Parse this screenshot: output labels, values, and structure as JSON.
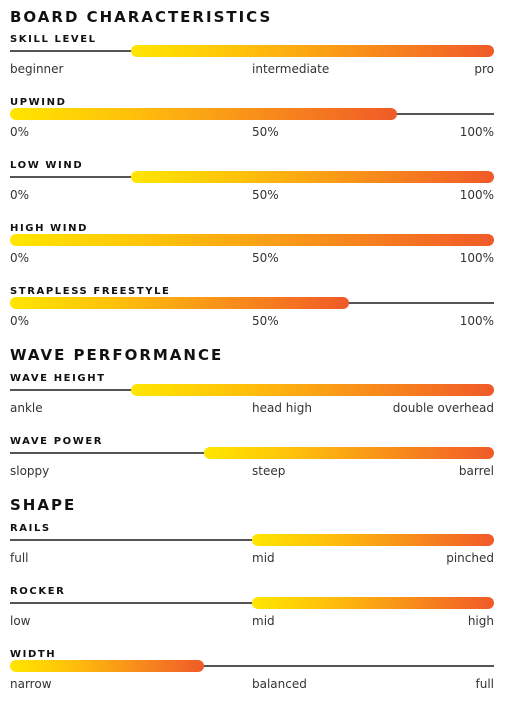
{
  "sections": [
    {
      "title": "BOARD CHARACTERISTICS",
      "items": [
        {
          "label": "SKILL LEVEL",
          "from": 0.25,
          "to": 1.0,
          "scale": [
            "beginner",
            "intermediate",
            "pro"
          ]
        },
        {
          "label": "UPWIND",
          "from": 0.0,
          "to": 0.8,
          "scale": [
            "0%",
            "50%",
            "100%"
          ]
        },
        {
          "label": "LOW WIND",
          "from": 0.25,
          "to": 1.0,
          "scale": [
            "0%",
            "50%",
            "100%"
          ]
        },
        {
          "label": "HIGH WIND",
          "from": 0.0,
          "to": 1.0,
          "scale": [
            "0%",
            "50%",
            "100%"
          ]
        },
        {
          "label": "STRAPLESS FREESTYLE",
          "from": 0.0,
          "to": 0.7,
          "scale": [
            "0%",
            "50%",
            "100%"
          ]
        }
      ]
    },
    {
      "title": "WAVE PERFORMANCE",
      "items": [
        {
          "label": "WAVE HEIGHT",
          "from": 0.25,
          "to": 1.0,
          "scale": [
            "ankle",
            "head high",
            "double overhead"
          ]
        },
        {
          "label": "WAVE POWER",
          "from": 0.4,
          "to": 1.0,
          "scale": [
            "sloppy",
            "steep",
            "barrel"
          ]
        }
      ]
    },
    {
      "title": "SHAPE",
      "items": [
        {
          "label": "RAILS",
          "from": 0.5,
          "to": 1.0,
          "scale": [
            "full",
            "mid",
            "pinched"
          ]
        },
        {
          "label": "ROCKER",
          "from": 0.5,
          "to": 1.0,
          "scale": [
            "low",
            "mid",
            "high"
          ]
        },
        {
          "label": "WIDTH",
          "from": 0.0,
          "to": 0.4,
          "scale": [
            "narrow",
            "balanced",
            "full"
          ]
        }
      ]
    }
  ],
  "colors": {
    "fill_start": "#ffe600",
    "fill_end": "#f05a28",
    "track": "#555555"
  }
}
